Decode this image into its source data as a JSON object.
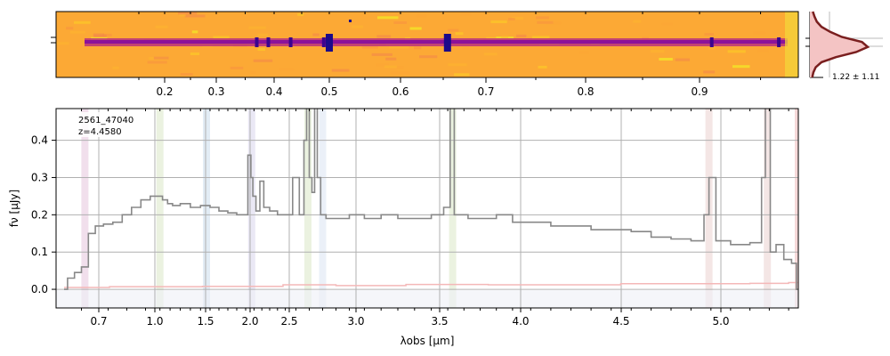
{
  "chart_data": [
    {
      "type": "heatmap",
      "name": "2d-spectrum",
      "colormap": "plasma",
      "top_axis_ticks": [
        "0.2",
        "0.3",
        "0.4",
        "0.5",
        "0.6",
        "0.7",
        "0.8",
        "0.9"
      ],
      "emission_lines": [
        0.37,
        0.39,
        0.43,
        0.49,
        0.5,
        0.655,
        0.91,
        0.965
      ]
    },
    {
      "type": "line",
      "name": "spatial-profile",
      "annotation": "1.22 ± 1.11",
      "line_color": "#7a1f1f",
      "fill_color": "#f4c4c4",
      "profile": [
        0.05,
        0.08,
        0.12,
        0.2,
        0.35,
        0.55,
        0.9,
        1.0,
        0.8,
        0.45,
        0.2,
        0.1,
        0.06,
        0.04
      ]
    },
    {
      "type": "line",
      "name": "1d-spectrum",
      "label_id": "2561_47040",
      "label_z": "z=4.4580",
      "xlabel": "λobs [μm]",
      "ylabel": "fν [μJy]",
      "ylim": [
        -0.05,
        0.485
      ],
      "xticks": [
        "0.7",
        "1.0",
        "1.5",
        "2.0",
        "2.5",
        "3.0",
        "3.5",
        "4.0",
        "4.5",
        "5.0"
      ],
      "yticks": [
        "0.0",
        "0.1",
        "0.2",
        "0.3",
        "0.4"
      ],
      "grid": true,
      "series": [
        {
          "color": "#888888",
          "x": [
            0.6,
            0.62,
            0.64,
            0.66,
            0.68,
            0.7,
            0.75,
            0.8,
            0.85,
            0.9,
            0.95,
            1.0,
            1.05,
            1.1,
            1.15,
            1.2,
            1.3,
            1.4,
            1.5,
            1.6,
            1.7,
            1.8,
            1.9,
            1.95,
            2.0,
            2.02,
            2.05,
            2.1,
            2.15,
            2.2,
            2.3,
            2.4,
            2.5,
            2.55,
            2.6,
            2.62,
            2.64,
            2.66,
            2.68,
            2.7,
            2.72,
            2.75,
            2.8,
            2.9,
            3.0,
            3.1,
            3.2,
            3.3,
            3.4,
            3.5,
            3.55,
            3.58,
            3.6,
            3.65,
            3.7,
            3.8,
            3.9,
            4.0,
            4.1,
            4.2,
            4.3,
            4.4,
            4.5,
            4.6,
            4.7,
            4.8,
            4.9,
            4.93,
            4.95,
            5.0,
            5.1,
            5.2,
            5.22,
            5.24,
            5.27,
            5.3,
            5.35,
            5.38,
            5.4
          ],
          "values": [
            0.0,
            0.03,
            0.045,
            0.06,
            0.15,
            0.17,
            0.175,
            0.18,
            0.2,
            0.22,
            0.24,
            0.25,
            0.25,
            0.24,
            0.23,
            0.225,
            0.23,
            0.22,
            0.225,
            0.22,
            0.21,
            0.205,
            0.2,
            0.2,
            0.36,
            0.3,
            0.25,
            0.21,
            0.29,
            0.22,
            0.21,
            0.2,
            0.2,
            0.3,
            0.2,
            0.4,
            0.52,
            0.3,
            0.26,
            0.52,
            0.3,
            0.2,
            0.19,
            0.19,
            0.2,
            0.19,
            0.2,
            0.19,
            0.19,
            0.2,
            0.22,
            0.52,
            0.2,
            0.2,
            0.19,
            0.19,
            0.2,
            0.18,
            0.18,
            0.17,
            0.17,
            0.16,
            0.16,
            0.155,
            0.14,
            0.135,
            0.13,
            0.2,
            0.3,
            0.13,
            0.12,
            0.125,
            0.3,
            0.52,
            0.1,
            0.12,
            0.08,
            0.07,
            0.0
          ]
        },
        {
          "color": "#f4b8b8",
          "x": [
            0.6,
            1.0,
            2.0,
            2.7,
            3.0,
            3.6,
            4.0,
            5.0,
            5.3,
            5.4
          ],
          "values": [
            0.005,
            0.007,
            0.008,
            0.012,
            0.01,
            0.013,
            0.012,
            0.015,
            0.016,
            0.018
          ]
        }
      ],
      "line_bands": [
        {
          "x": 0.66,
          "color": "#e7c9e0"
        },
        {
          "x": 1.05,
          "color": "#dde9cc"
        },
        {
          "x": 1.51,
          "color": "#cfe0ee"
        },
        {
          "x": 2.02,
          "color": "#dcd9ee"
        },
        {
          "x": 2.64,
          "color": "#dde9cc"
        },
        {
          "x": 2.75,
          "color": "#dde6f4"
        },
        {
          "x": 3.58,
          "color": "#dde9cc"
        },
        {
          "x": 4.94,
          "color": "#ecd6d4"
        },
        {
          "x": 5.24,
          "color": "#ecd6d4"
        },
        {
          "x": 5.4,
          "color": "#f0c0c0"
        }
      ]
    }
  ]
}
